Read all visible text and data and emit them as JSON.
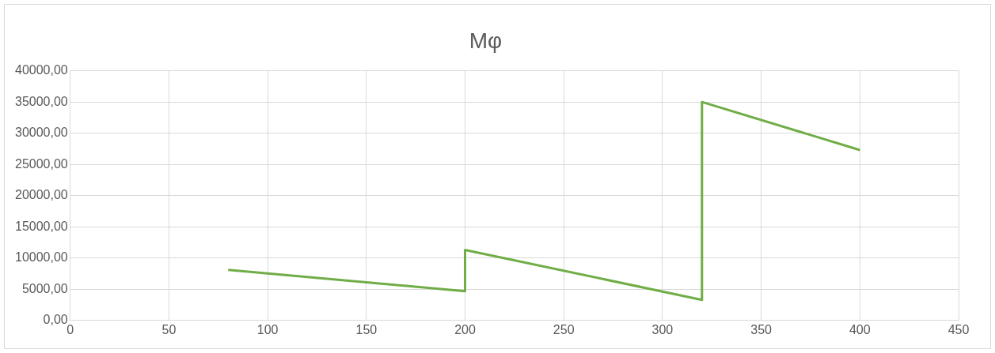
{
  "chart_data": {
    "type": "line",
    "title": "Mφ",
    "series": [
      {
        "color": "#70ad47",
        "x": [
          80,
          200,
          200,
          320,
          320,
          400
        ],
        "values": [
          8100,
          4700,
          11300,
          3300,
          35000,
          27300
        ]
      }
    ],
    "xlim": [
      0,
      450
    ],
    "xticks": [
      0,
      50,
      100,
      150,
      200,
      250,
      300,
      350,
      400,
      450
    ],
    "ylim": [
      0,
      40000
    ],
    "yticks": [
      {
        "value": 0,
        "label": "0,00"
      },
      {
        "value": 5000,
        "label": "5000,00"
      },
      {
        "value": 10000,
        "label": "10000,00"
      },
      {
        "value": 15000,
        "label": "15000,00"
      },
      {
        "value": 20000,
        "label": "20000,00"
      },
      {
        "value": 25000,
        "label": "25000,00"
      },
      {
        "value": 30000,
        "label": "30000,00"
      },
      {
        "value": 35000,
        "label": "35000,00"
      },
      {
        "value": 40000,
        "label": "40000,00"
      }
    ],
    "grid": true,
    "marker": "none",
    "line_style": "solid",
    "legend": false
  }
}
